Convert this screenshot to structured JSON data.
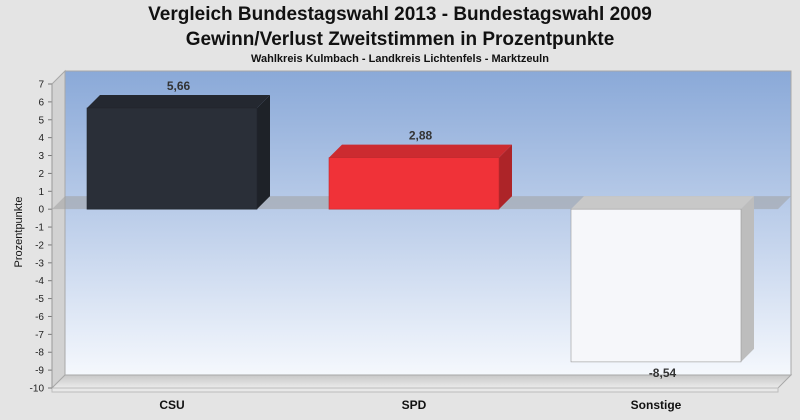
{
  "chart_data": {
    "type": "bar",
    "title": "Vergleich Bundestagswahl 2013 - Bundestagswahl 2009",
    "subtitle_line2": "Gewinn/Verlust Zweitstimmen in Prozentpunkte",
    "subtitle": "Wahlkreis Kulmbach - Landkreis Lichtenfels - Marktzeuln",
    "ylabel": "Prozentpunkte",
    "xlabel": "",
    "ylim": [
      -10,
      7
    ],
    "yticks": [
      7,
      6,
      5,
      4,
      3,
      2,
      1,
      0,
      -1,
      -2,
      -3,
      -4,
      -5,
      -6,
      -7,
      -8,
      -9,
      -10
    ],
    "categories": [
      "CSU",
      "SPD",
      "Sonstige"
    ],
    "values": [
      5.66,
      2.88,
      -8.54
    ],
    "value_labels": [
      "5,66",
      "2,88",
      "-8,54"
    ],
    "colors": [
      "#2a2f38",
      "#f03238",
      "#f6f7fa"
    ],
    "legend": "none",
    "grid": false
  }
}
